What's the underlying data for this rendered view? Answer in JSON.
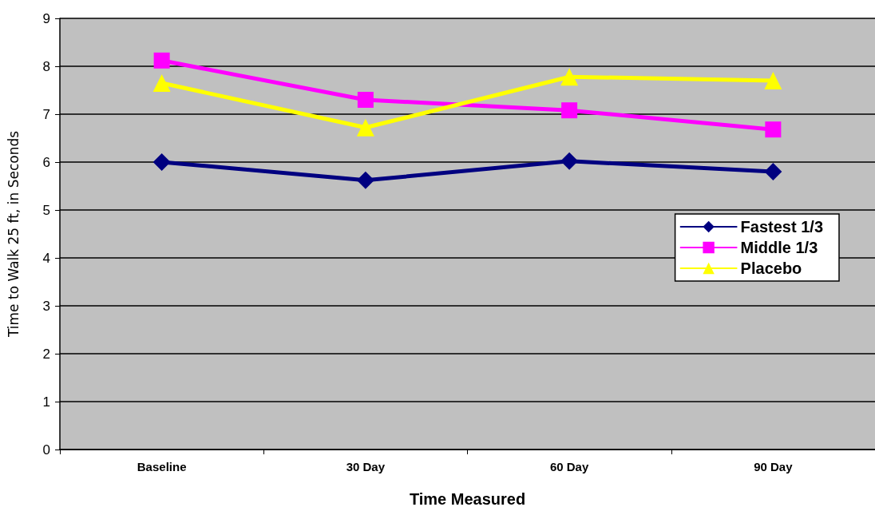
{
  "chart_data": {
    "type": "line",
    "xlabel": "Time Measured",
    "ylabel": "Time to Walk 25 ft, in Seconds",
    "categories": [
      "Baseline",
      "30 Day",
      "60 Day",
      "90 Day"
    ],
    "series": [
      {
        "name": "Fastest 1/3",
        "color": "#000080",
        "marker": "diamond",
        "values": [
          6.0,
          5.62,
          6.02,
          5.8
        ]
      },
      {
        "name": "Middle 1/3",
        "color": "#ff00ff",
        "marker": "square",
        "values": [
          8.12,
          7.3,
          7.08,
          6.68
        ]
      },
      {
        "name": "Placebo",
        "color": "#ffff00",
        "marker": "triangle",
        "values": [
          7.65,
          6.72,
          7.78,
          7.7
        ]
      }
    ],
    "ylim": [
      0,
      9
    ],
    "yticks": [
      0,
      1,
      2,
      3,
      4,
      5,
      6,
      7,
      8,
      9
    ],
    "grid": "y",
    "legend": "right",
    "line_style": "solid"
  }
}
